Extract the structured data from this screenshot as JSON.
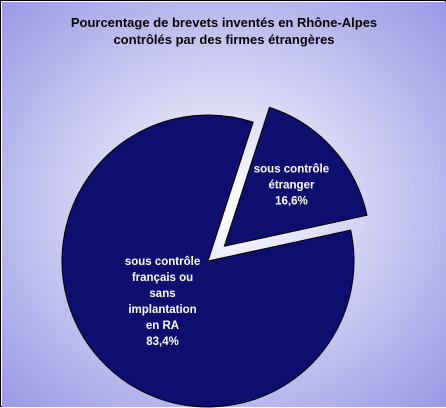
{
  "chart_data": {
    "type": "pie",
    "title": "Pourcentage de brevets inventés en Rhône-Alpes\ncontrôlés par des firmes étrangères",
    "slices": [
      {
        "label_lines": [
          "sous contrôle",
          "étranger",
          "16,6%"
        ],
        "value": 16.6,
        "exploded": true
      },
      {
        "label_lines": [
          "sous contrôle",
          "français ou",
          "sans",
          "implantation",
          "en RA",
          "83,4%"
        ],
        "value": 83.4,
        "exploded": false
      }
    ],
    "colors": {
      "slice_fill": "#0e0e6e",
      "bg_center": "#ffffff",
      "bg_edge": "#9a9ae6"
    }
  }
}
